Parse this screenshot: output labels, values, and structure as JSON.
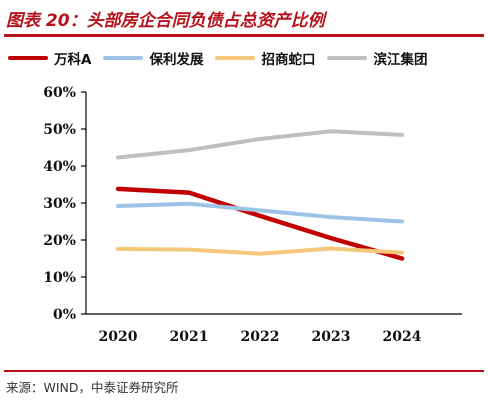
{
  "title": "图表 20：头部房企合同负债占总资产比例",
  "source": "来源：WIND，中泰证券研究所",
  "chart_data": {
    "type": "line",
    "title": "图表 20：头部房企合同负债占总资产比例",
    "xlabel": "",
    "ylabel": "",
    "x": [
      "2020",
      "2021",
      "2022",
      "2023",
      "2024"
    ],
    "ylim": [
      0,
      60
    ],
    "yticks": [
      0,
      10,
      20,
      30,
      40,
      50,
      60
    ],
    "ytick_labels": [
      "0%",
      "10%",
      "20%",
      "30%",
      "40%",
      "50%",
      "60%"
    ],
    "grid": false,
    "legend_position": "top",
    "series": [
      {
        "name": "万科A",
        "color": "#c00000",
        "values": [
          33.8,
          32.8,
          26.5,
          20.5,
          15.0
        ]
      },
      {
        "name": "保利发展",
        "color": "#9dc3e6",
        "values": [
          29.2,
          29.8,
          28.0,
          26.2,
          25.0
        ]
      },
      {
        "name": "招商蛇口",
        "color": "#f4c77a",
        "values": [
          17.6,
          17.4,
          16.3,
          17.7,
          16.6
        ]
      },
      {
        "name": "滨江集团",
        "color": "#bfbfbf",
        "values": [
          42.3,
          44.3,
          47.3,
          49.4,
          48.4
        ]
      }
    ]
  }
}
